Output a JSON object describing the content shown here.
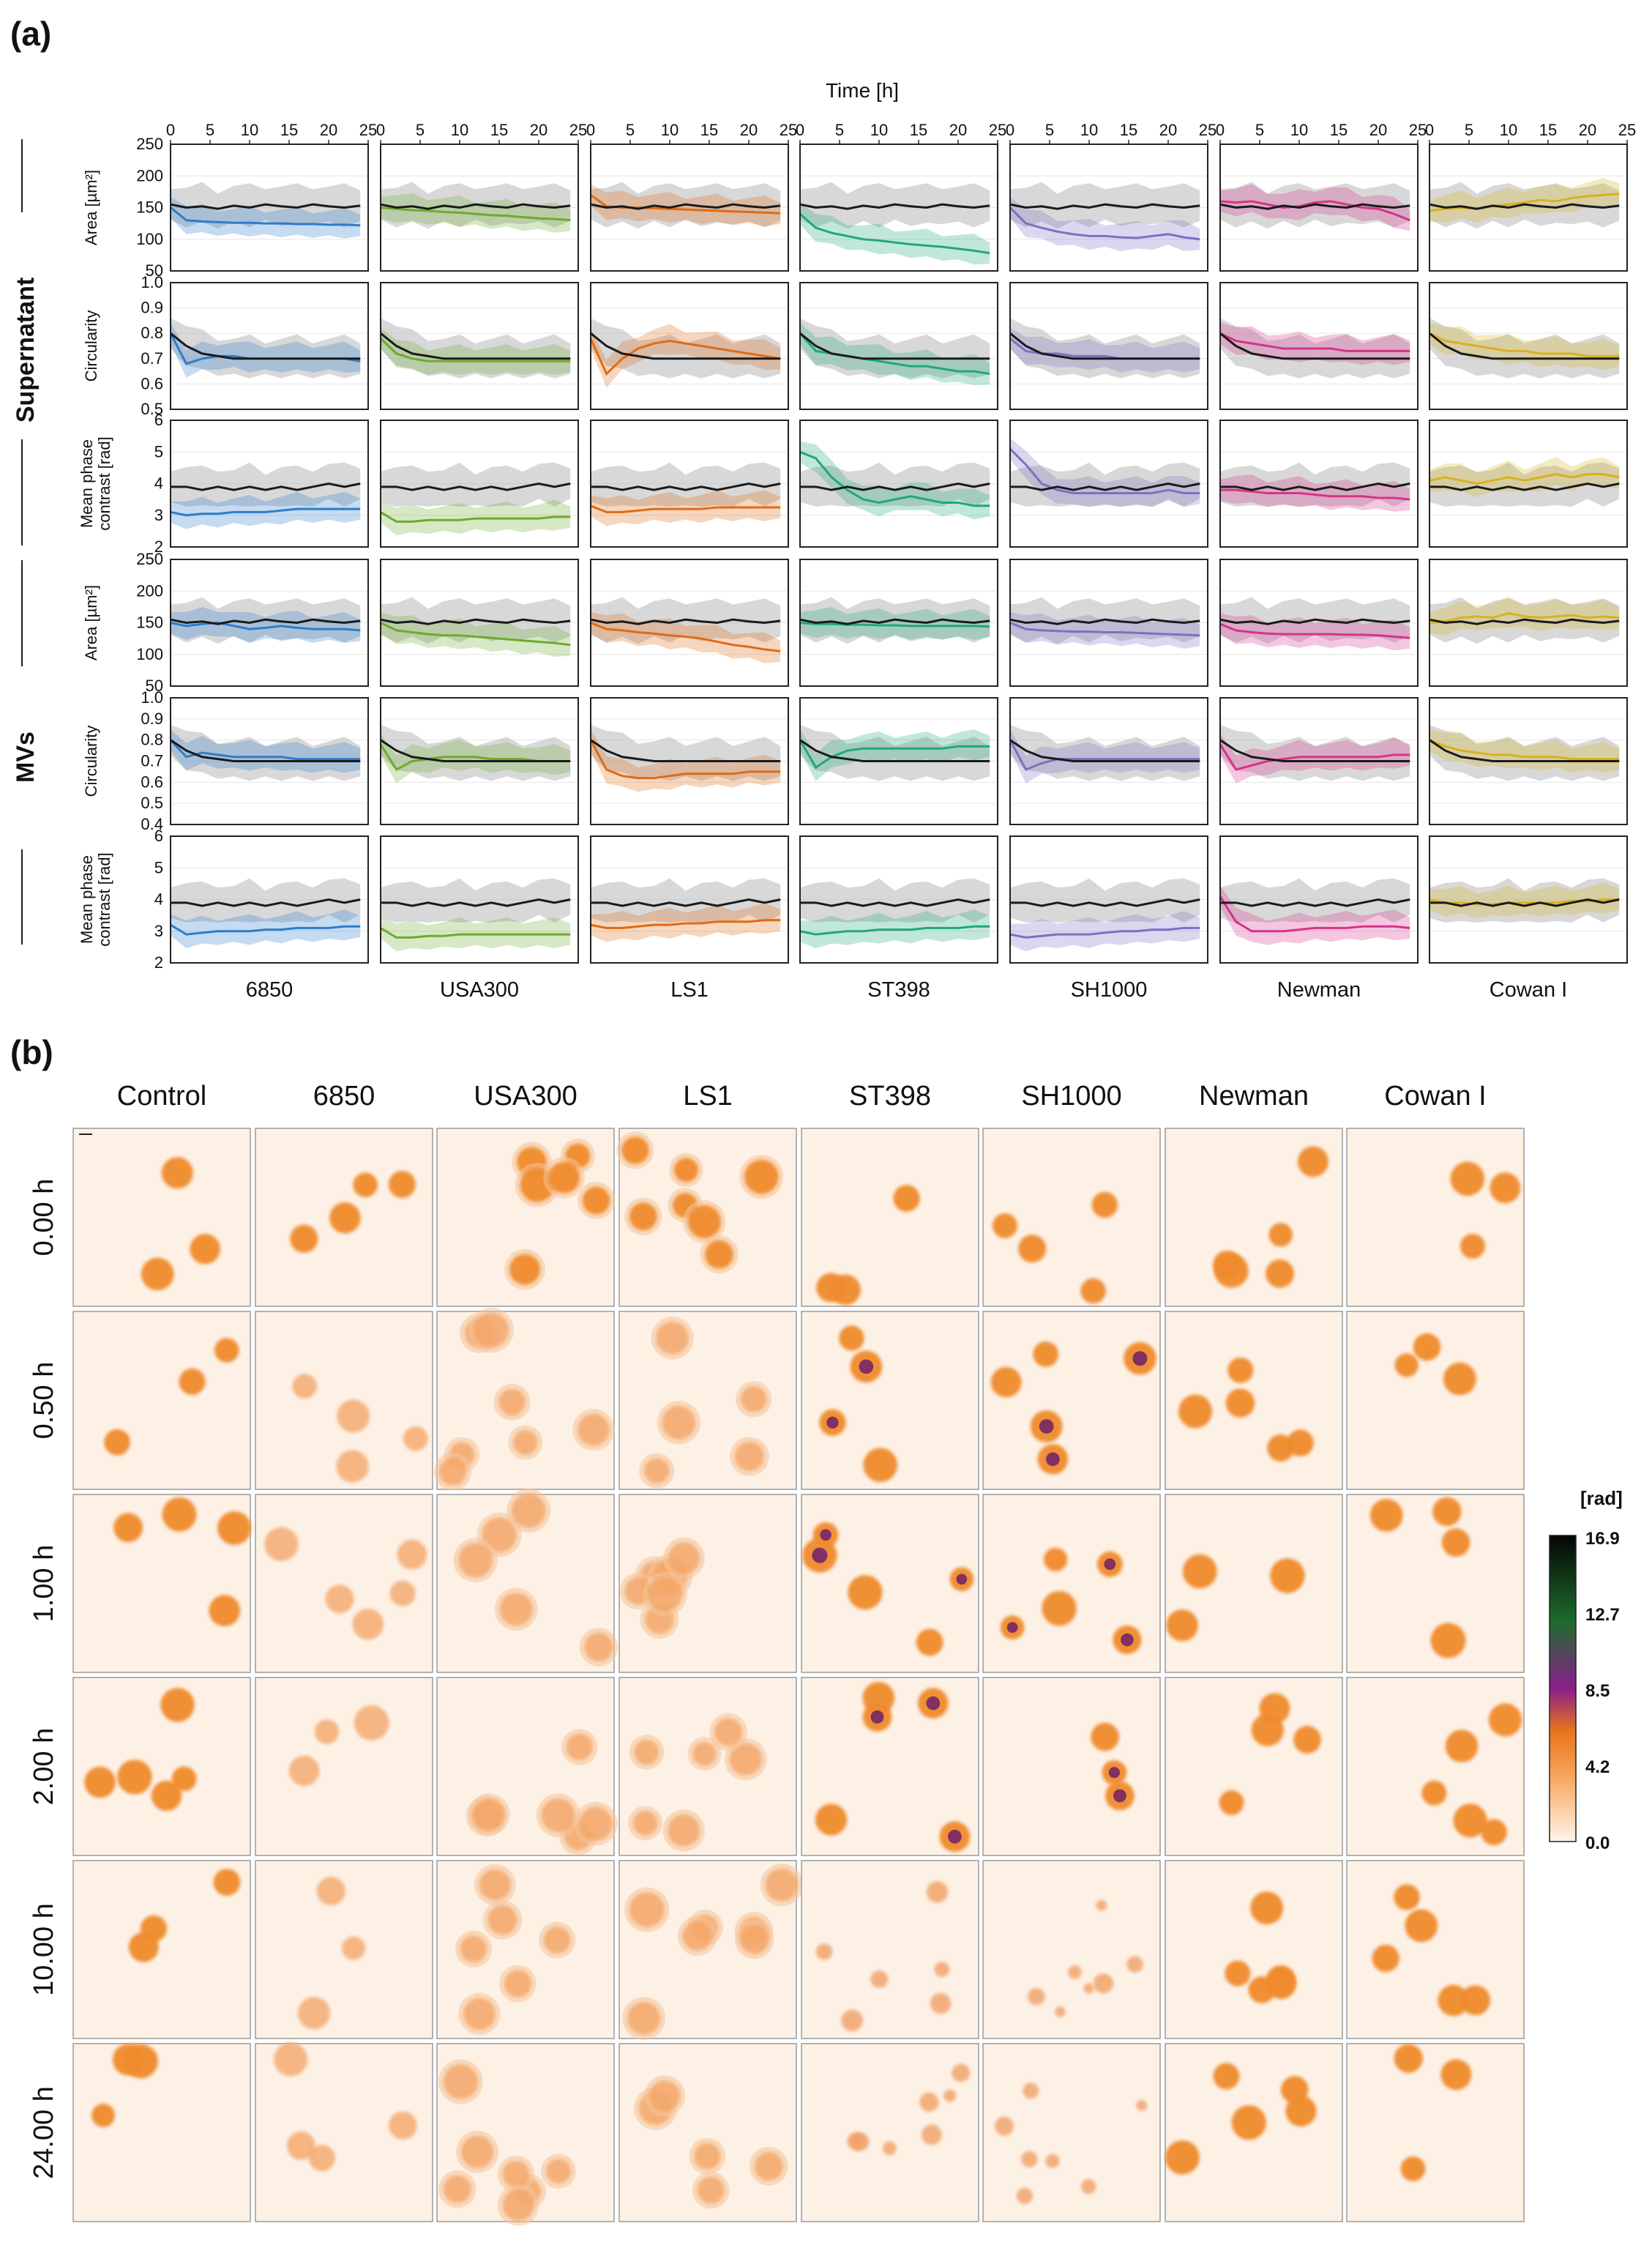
{
  "panel_a": {
    "label": "(a)",
    "time_axis_title": "Time [h]",
    "x_ticks": [
      "0",
      "5",
      "10",
      "15",
      "20",
      "25"
    ],
    "groups": [
      "Supernatant",
      "MVs"
    ],
    "strains": [
      "6850",
      "USA300",
      "LS1",
      "ST398",
      "SH1000",
      "Newman",
      "Cowan I"
    ],
    "strain_colors": [
      "#2e7ccb",
      "#6cab2d",
      "#e06b14",
      "#1fa87c",
      "#7d6fc4",
      "#d6328c",
      "#d8b21b"
    ],
    "control_color": "#1a1a1a",
    "rows": [
      {
        "group": "Supernatant",
        "metric": "area",
        "ylabel": "Area [µm²]",
        "ylim": [
          50,
          250
        ],
        "yticks": [
          "250",
          "200",
          "150",
          "100",
          "50"
        ]
      },
      {
        "group": "Supernatant",
        "metric": "circularity",
        "ylabel": "Circularity",
        "ylim": [
          0.5,
          1.0
        ],
        "yticks": [
          "1.0",
          "0.9",
          "0.8",
          "0.7",
          "0.6",
          "0.5"
        ]
      },
      {
        "group": "Supernatant",
        "metric": "phase",
        "ylabel": "Mean phase contrast [rad]",
        "ylim": [
          2,
          6
        ],
        "yticks": [
          "6",
          "5",
          "4",
          "3",
          "2"
        ]
      },
      {
        "group": "MVs",
        "metric": "area",
        "ylabel": "Area [µm²]",
        "ylim": [
          50,
          250
        ],
        "yticks": [
          "250",
          "200",
          "150",
          "100",
          "50"
        ]
      },
      {
        "group": "MVs",
        "metric": "circularity",
        "ylabel": "Circularity",
        "ylim": [
          0.4,
          1.0
        ],
        "yticks": [
          "1.0",
          "0.9",
          "0.8",
          "0.7",
          "0.6",
          "0.5",
          "0.4"
        ]
      },
      {
        "group": "MVs",
        "metric": "phase",
        "ylabel": "Mean phase contrast [rad]",
        "ylim": [
          2,
          6
        ],
        "yticks": [
          "6",
          "5",
          "4",
          "3",
          "2"
        ]
      }
    ]
  },
  "chart_data": {
    "type": "line",
    "title": "Time [h]",
    "xlabel": "Time [h]",
    "xlim": [
      0,
      25
    ],
    "x": [
      0,
      2,
      4,
      6,
      8,
      10,
      12,
      14,
      16,
      18,
      20,
      22,
      24
    ],
    "control": {
      "area": [
        155,
        150,
        152,
        148,
        153,
        150,
        155,
        152,
        150,
        155,
        152,
        150,
        153
      ],
      "circularity": [
        0.8,
        0.75,
        0.72,
        0.71,
        0.7,
        0.7,
        0.7,
        0.7,
        0.7,
        0.7,
        0.7,
        0.7,
        0.7
      ],
      "phase": [
        3.9,
        3.9,
        3.8,
        3.9,
        3.8,
        3.9,
        3.8,
        3.9,
        3.8,
        3.9,
        4.0,
        3.9,
        4.0
      ]
    },
    "series": [
      {
        "group": "Supernatant",
        "metric": "area",
        "values": [
          [
            150,
            130,
            128,
            127,
            126,
            126,
            125,
            125,
            124,
            124,
            123,
            123,
            122
          ],
          [
            150,
            148,
            146,
            145,
            143,
            142,
            140,
            138,
            137,
            135,
            133,
            132,
            130
          ],
          [
            170,
            152,
            150,
            150,
            149,
            148,
            147,
            146,
            145,
            144,
            143,
            142,
            141
          ],
          [
            140,
            118,
            110,
            105,
            100,
            98,
            95,
            92,
            90,
            88,
            85,
            82,
            78
          ],
          [
            150,
            125,
            118,
            112,
            108,
            105,
            105,
            103,
            102,
            105,
            108,
            103,
            100
          ],
          [
            160,
            158,
            160,
            155,
            150,
            152,
            158,
            160,
            155,
            150,
            148,
            140,
            130
          ],
          [
            145,
            148,
            150,
            148,
            152,
            155,
            158,
            162,
            160,
            165,
            168,
            170,
            172
          ]
        ]
      },
      {
        "group": "Supernatant",
        "metric": "circularity",
        "values": [
          [
            0.8,
            0.68,
            0.7,
            0.71,
            0.71,
            0.7,
            0.7,
            0.7,
            0.7,
            0.7,
            0.7,
            0.7,
            0.69
          ],
          [
            0.78,
            0.72,
            0.7,
            0.69,
            0.69,
            0.69,
            0.69,
            0.69,
            0.69,
            0.69,
            0.69,
            0.69,
            0.69
          ],
          [
            0.78,
            0.64,
            0.7,
            0.74,
            0.76,
            0.77,
            0.76,
            0.75,
            0.74,
            0.73,
            0.72,
            0.71,
            0.7
          ],
          [
            0.8,
            0.73,
            0.72,
            0.71,
            0.7,
            0.69,
            0.68,
            0.67,
            0.67,
            0.66,
            0.65,
            0.65,
            0.64
          ],
          [
            0.78,
            0.73,
            0.72,
            0.72,
            0.71,
            0.71,
            0.71,
            0.7,
            0.7,
            0.7,
            0.7,
            0.7,
            0.7
          ],
          [
            0.8,
            0.77,
            0.76,
            0.75,
            0.74,
            0.74,
            0.74,
            0.74,
            0.73,
            0.73,
            0.73,
            0.73,
            0.73
          ],
          [
            0.8,
            0.77,
            0.76,
            0.75,
            0.74,
            0.73,
            0.73,
            0.72,
            0.72,
            0.72,
            0.71,
            0.71,
            0.71
          ]
        ]
      },
      {
        "group": "Supernatant",
        "metric": "phase",
        "values": [
          [
            3.1,
            3.0,
            3.05,
            3.05,
            3.1,
            3.1,
            3.1,
            3.15,
            3.2,
            3.2,
            3.2,
            3.2,
            3.2
          ],
          [
            3.1,
            2.8,
            2.8,
            2.85,
            2.85,
            2.85,
            2.9,
            2.9,
            2.9,
            2.9,
            2.9,
            2.95,
            2.95
          ],
          [
            3.3,
            3.1,
            3.1,
            3.15,
            3.2,
            3.2,
            3.2,
            3.2,
            3.25,
            3.25,
            3.25,
            3.25,
            3.25
          ],
          [
            5.0,
            4.8,
            4.2,
            3.8,
            3.5,
            3.4,
            3.5,
            3.6,
            3.5,
            3.4,
            3.4,
            3.3,
            3.3
          ],
          [
            5.1,
            4.6,
            4.0,
            3.8,
            3.7,
            3.7,
            3.7,
            3.7,
            3.7,
            3.7,
            3.8,
            3.7,
            3.7
          ],
          [
            3.8,
            3.8,
            3.75,
            3.7,
            3.7,
            3.7,
            3.65,
            3.6,
            3.6,
            3.6,
            3.55,
            3.55,
            3.5
          ],
          [
            4.1,
            4.2,
            4.1,
            4.0,
            4.1,
            4.2,
            4.1,
            4.2,
            4.3,
            4.2,
            4.3,
            4.3,
            4.2
          ]
        ]
      },
      {
        "group": "MVs",
        "metric": "area",
        "values": [
          [
            150,
            145,
            148,
            150,
            145,
            140,
            142,
            145,
            142,
            140,
            140,
            140,
            138
          ],
          [
            150,
            138,
            135,
            132,
            130,
            130,
            128,
            126,
            124,
            122,
            120,
            118,
            115
          ],
          [
            150,
            140,
            138,
            135,
            133,
            130,
            128,
            125,
            120,
            115,
            112,
            108,
            105
          ],
          [
            150,
            148,
            148,
            147,
            147,
            146,
            146,
            145,
            145,
            145,
            145,
            145,
            144
          ],
          [
            150,
            140,
            138,
            137,
            136,
            136,
            135,
            135,
            134,
            133,
            132,
            131,
            130
          ],
          [
            148,
            138,
            135,
            133,
            132,
            132,
            132,
            132,
            131,
            131,
            130,
            128,
            126
          ],
          [
            150,
            152,
            158,
            160,
            158,
            165,
            160,
            158,
            160,
            162,
            158,
            160,
            158
          ]
        ]
      },
      {
        "group": "MVs",
        "metric": "circularity",
        "values": [
          [
            0.8,
            0.72,
            0.74,
            0.73,
            0.72,
            0.72,
            0.72,
            0.72,
            0.71,
            0.71,
            0.71,
            0.71,
            0.71
          ],
          [
            0.78,
            0.66,
            0.7,
            0.71,
            0.72,
            0.72,
            0.72,
            0.71,
            0.71,
            0.71,
            0.7,
            0.7,
            0.7
          ],
          [
            0.8,
            0.66,
            0.63,
            0.62,
            0.62,
            0.63,
            0.64,
            0.64,
            0.64,
            0.64,
            0.65,
            0.65,
            0.65
          ],
          [
            0.8,
            0.67,
            0.72,
            0.75,
            0.76,
            0.76,
            0.76,
            0.76,
            0.76,
            0.76,
            0.77,
            0.77,
            0.77
          ],
          [
            0.8,
            0.66,
            0.69,
            0.71,
            0.71,
            0.71,
            0.71,
            0.71,
            0.71,
            0.71,
            0.71,
            0.71,
            0.71
          ],
          [
            0.78,
            0.66,
            0.68,
            0.7,
            0.71,
            0.72,
            0.72,
            0.72,
            0.72,
            0.72,
            0.72,
            0.73,
            0.73
          ],
          [
            0.8,
            0.77,
            0.75,
            0.74,
            0.73,
            0.73,
            0.72,
            0.72,
            0.72,
            0.71,
            0.71,
            0.71,
            0.71
          ]
        ]
      },
      {
        "group": "MVs",
        "metric": "phase",
        "values": [
          [
            3.2,
            2.9,
            2.95,
            3.0,
            3.0,
            3.0,
            3.05,
            3.05,
            3.1,
            3.1,
            3.1,
            3.15,
            3.15
          ],
          [
            3.1,
            2.8,
            2.8,
            2.85,
            2.85,
            2.9,
            2.9,
            2.9,
            2.9,
            2.9,
            2.9,
            2.9,
            2.9
          ],
          [
            3.2,
            3.1,
            3.1,
            3.15,
            3.2,
            3.2,
            3.25,
            3.25,
            3.3,
            3.3,
            3.3,
            3.35,
            3.35
          ],
          [
            3.0,
            2.9,
            2.95,
            3.0,
            3.0,
            3.05,
            3.05,
            3.05,
            3.1,
            3.1,
            3.1,
            3.15,
            3.15
          ],
          [
            2.9,
            2.8,
            2.85,
            2.9,
            2.9,
            2.9,
            2.95,
            3.0,
            3.0,
            3.05,
            3.05,
            3.1,
            3.1
          ],
          [
            4.1,
            3.3,
            3.0,
            3.0,
            3.0,
            3.05,
            3.1,
            3.1,
            3.1,
            3.15,
            3.15,
            3.15,
            3.1
          ],
          [
            4.0,
            3.9,
            3.9,
            3.85,
            3.85,
            3.9,
            3.9,
            3.9,
            3.9,
            3.95,
            3.95,
            4.0,
            4.0
          ]
        ]
      }
    ]
  },
  "panel_b": {
    "label": "(b)",
    "columns": [
      "Control",
      "6850",
      "USA300",
      "LS1",
      "ST398",
      "SH1000",
      "Newman",
      "Cowan I"
    ],
    "rows": [
      "0.00 h",
      "0.50 h",
      "1.00 h",
      "2.00 h",
      "10.00 h",
      "24.00 h"
    ],
    "colorbar_unit": "[rad]",
    "colorbar_ticks": [
      "16.9",
      "12.7",
      "8.5",
      "4.2",
      "0.0"
    ],
    "colorbar_range": [
      0.0,
      16.9
    ]
  }
}
